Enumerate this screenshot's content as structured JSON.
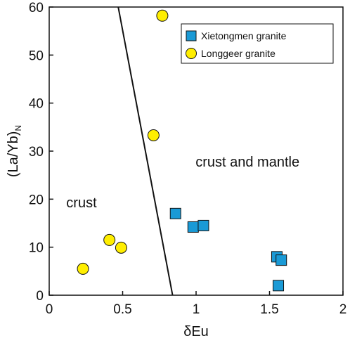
{
  "chart_data": {
    "type": "scatter",
    "xlabel": "δEu",
    "ylabel_main": "(La/Yb)",
    "ylabel_sub": "N",
    "xlim": [
      0,
      2
    ],
    "ylim": [
      0,
      60
    ],
    "x_ticks": [
      "0",
      "0.5",
      "1",
      "1.5",
      "2"
    ],
    "y_ticks": [
      "0",
      "10",
      "20",
      "30",
      "40",
      "50",
      "60"
    ],
    "x_tick_values": [
      0,
      0.5,
      1,
      1.5,
      2
    ],
    "y_tick_values": [
      0,
      10,
      20,
      30,
      40,
      50,
      60
    ],
    "grid": false,
    "legend_position": "top-right",
    "series": [
      {
        "name": "Xietongmen granite",
        "marker": "square",
        "color": "#1a9ad6",
        "x": [
          0.86,
          0.98,
          1.05,
          1.55,
          1.58,
          1.56
        ],
        "y": [
          17,
          14.2,
          14.5,
          8.0,
          7.3,
          2.0
        ]
      },
      {
        "name": "Longgeer granite",
        "marker": "circle",
        "color": "#ffee00",
        "x": [
          0.77,
          0.71,
          0.41,
          0.49,
          0.23
        ],
        "y": [
          58.2,
          33.3,
          11.5,
          9.9,
          5.5
        ]
      }
    ],
    "boundary_line": {
      "x": [
        0.47,
        0.84
      ],
      "y": [
        60,
        0
      ]
    },
    "regions": [
      {
        "label": "crust",
        "x": 0.22,
        "y": 19.3
      },
      {
        "label": "crust and mantle",
        "x": 1.35,
        "y": 27.8
      }
    ]
  }
}
